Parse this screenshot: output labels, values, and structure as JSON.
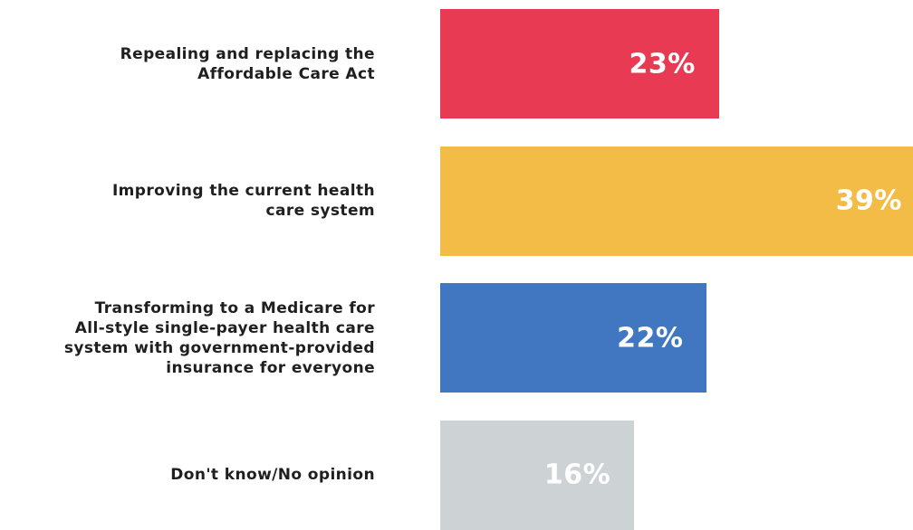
{
  "chart_data": {
    "type": "bar",
    "orientation": "horizontal",
    "categories": [
      "Repealing and replacing the\nAffordable Care Act",
      "Improving the current health\ncare system",
      "Transforming to a Medicare for\nAll-style single-payer health care\nsystem with government-provided\ninsurance for everyone",
      "Don't know/No opinion"
    ],
    "values": [
      23,
      39,
      22,
      16
    ],
    "value_labels": [
      "23%",
      "39%",
      "22%",
      "16%"
    ],
    "colors": [
      "#e83a52",
      "#f3bc47",
      "#4177c0",
      "#cdd2d4"
    ],
    "xlim": [
      0,
      39
    ],
    "grid": false,
    "legend": "none"
  }
}
